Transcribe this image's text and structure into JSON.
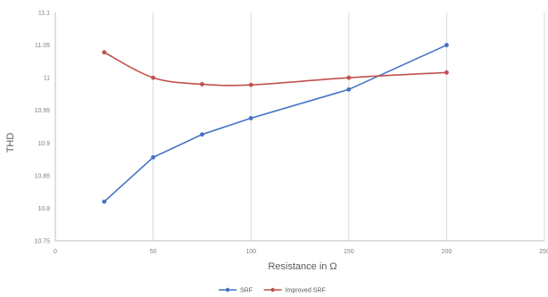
{
  "chart_data": {
    "type": "line",
    "xlabel": "Resistance in Ω",
    "ylabel": "THD",
    "xlim": [
      0,
      250
    ],
    "ylim": [
      10.75,
      11.1
    ],
    "x_ticks": [
      "0",
      "50",
      "100",
      "150",
      "200",
      "250"
    ],
    "y_ticks": [
      "10.75",
      "10.8",
      "10.85",
      "10.9",
      "10.95",
      "11",
      "11.05",
      "11.1"
    ],
    "grid": "vertical",
    "legend_position": "bottom",
    "series": [
      {
        "name": "SRF",
        "color": "#4472c4",
        "x": [
          25,
          50,
          75,
          100,
          150,
          200
        ],
        "y": [
          10.81,
          10.878,
          10.913,
          10.938,
          10.982,
          11.05
        ]
      },
      {
        "name": "Improved SRF",
        "color": "#c0504d",
        "x": [
          25,
          50,
          75,
          100,
          150,
          200
        ],
        "y": [
          11.039,
          11.0,
          10.99,
          10.989,
          11.0,
          11.008
        ]
      }
    ]
  }
}
